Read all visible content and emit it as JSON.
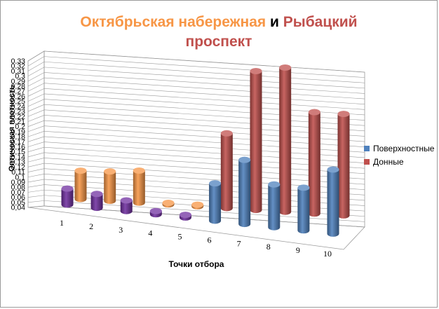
{
  "chart_data": {
    "type": "bar",
    "title_parts": [
      {
        "text": "Октябрьская набережная",
        "color": "#f79646"
      },
      {
        "text": " и ",
        "color": "#000000"
      },
      {
        "text": "Рыбацкий",
        "color": "#c0504d"
      },
      {
        "text": "проспект",
        "color": "#c0504d"
      }
    ],
    "xlabel": "Точки отбора",
    "ylabel": "Оптическая плотность",
    "categories": [
      "1",
      "2",
      "3",
      "4",
      "5",
      "6",
      "7",
      "8",
      "9",
      "10"
    ],
    "y_ticks": [
      "0,04",
      "0,05",
      "0,06",
      "0,07",
      "0,08",
      "0,09",
      "0,1",
      "0,11",
      "0,12",
      "0,13",
      "0,14",
      "0,15",
      "0,16",
      "0,17",
      "0,18",
      "0,19",
      "0,2",
      "0,21",
      "0,22",
      "0,23",
      "0,24",
      "0,25",
      "0,26",
      "0,27",
      "0,28",
      "0,29",
      "0,3",
      "0,31",
      "0,32",
      "0,33"
    ],
    "ylim": [
      0.04,
      0.33
    ],
    "series": [
      {
        "name": "Поверхностные",
        "color": "#4f81bd",
        "values": [
          0.07,
          0.066,
          0.06,
          0.046,
          0.045,
          0.11,
          0.16,
          0.12,
          0.12,
          0.16
        ]
      },
      {
        "name": "Донные",
        "color": "#c0504d",
        "values": [
          0.093,
          0.095,
          0.1,
          0.043,
          0.043,
          0.18,
          0.3,
          0.31,
          0.23,
          0.23
        ]
      }
    ],
    "point_colors_front": {
      "1": "#7030a0",
      "2": "#7030a0",
      "3": "#7030a0",
      "4": "#7030a0",
      "5": "#7030a0"
    },
    "point_colors_back": {
      "1": "#f79646",
      "2": "#f79646",
      "3": "#f79646",
      "4": "#f79646",
      "5": "#f79646"
    },
    "legend_position": "right",
    "grid": true
  }
}
